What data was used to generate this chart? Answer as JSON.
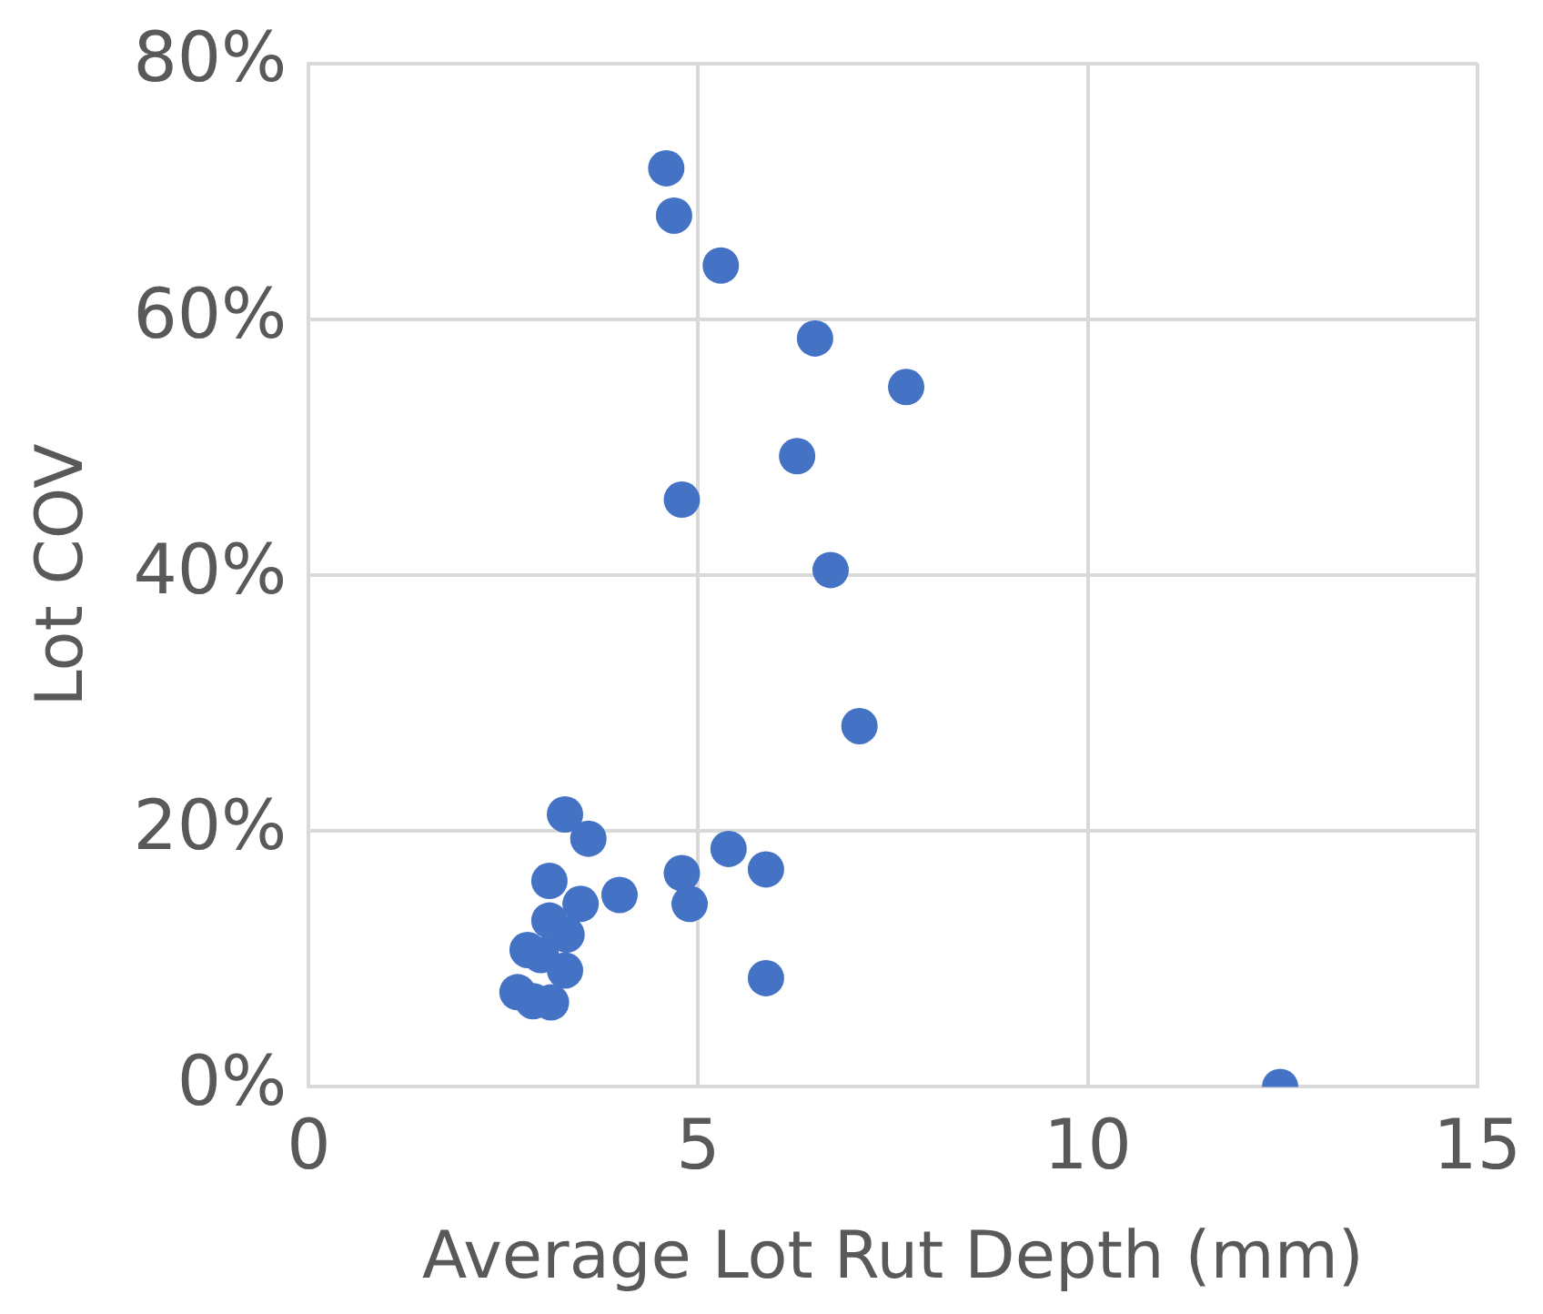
{
  "chart_data": {
    "type": "scatter",
    "xlabel": "Average Lot Rut Depth (mm)",
    "ylabel": "Lot COV",
    "series": [
      {
        "color": "#4472c4",
        "x": [
          4.59,
          4.69,
          5.29,
          6.5,
          7.67,
          6.27,
          4.79,
          6.7,
          7.07,
          5.39,
          5.87,
          4.79,
          4.89,
          5.87,
          12.47,
          3.29,
          3.59,
          3.09,
          3.99,
          3.49,
          3.09,
          3.31,
          2.81,
          2.98,
          3.29,
          2.68,
          2.88,
          3.11
        ],
        "values": [
          71.8,
          68.1,
          64.2,
          58.5,
          54.7,
          49.3,
          45.9,
          40.4,
          28.2,
          18.6,
          17.0,
          16.7,
          14.3,
          8.5,
          0,
          21.3,
          19.4,
          16.1,
          15.0,
          14.3,
          13.0,
          11.9,
          10.7,
          10.3,
          9.1,
          7.4,
          6.7,
          6.6
        ]
      }
    ],
    "xlim": [
      0,
      15
    ],
    "xticks": [
      0,
      5,
      10,
      15
    ],
    "ylim": [
      0,
      80
    ],
    "yticks": [
      {
        "value": 0,
        "label": "0%"
      },
      {
        "value": 20,
        "label": "20%"
      },
      {
        "value": 40,
        "label": "40%"
      },
      {
        "value": 60,
        "label": "60%"
      },
      {
        "value": 80,
        "label": "80%"
      }
    ],
    "grid": true,
    "legend": false,
    "marker": "circle"
  }
}
